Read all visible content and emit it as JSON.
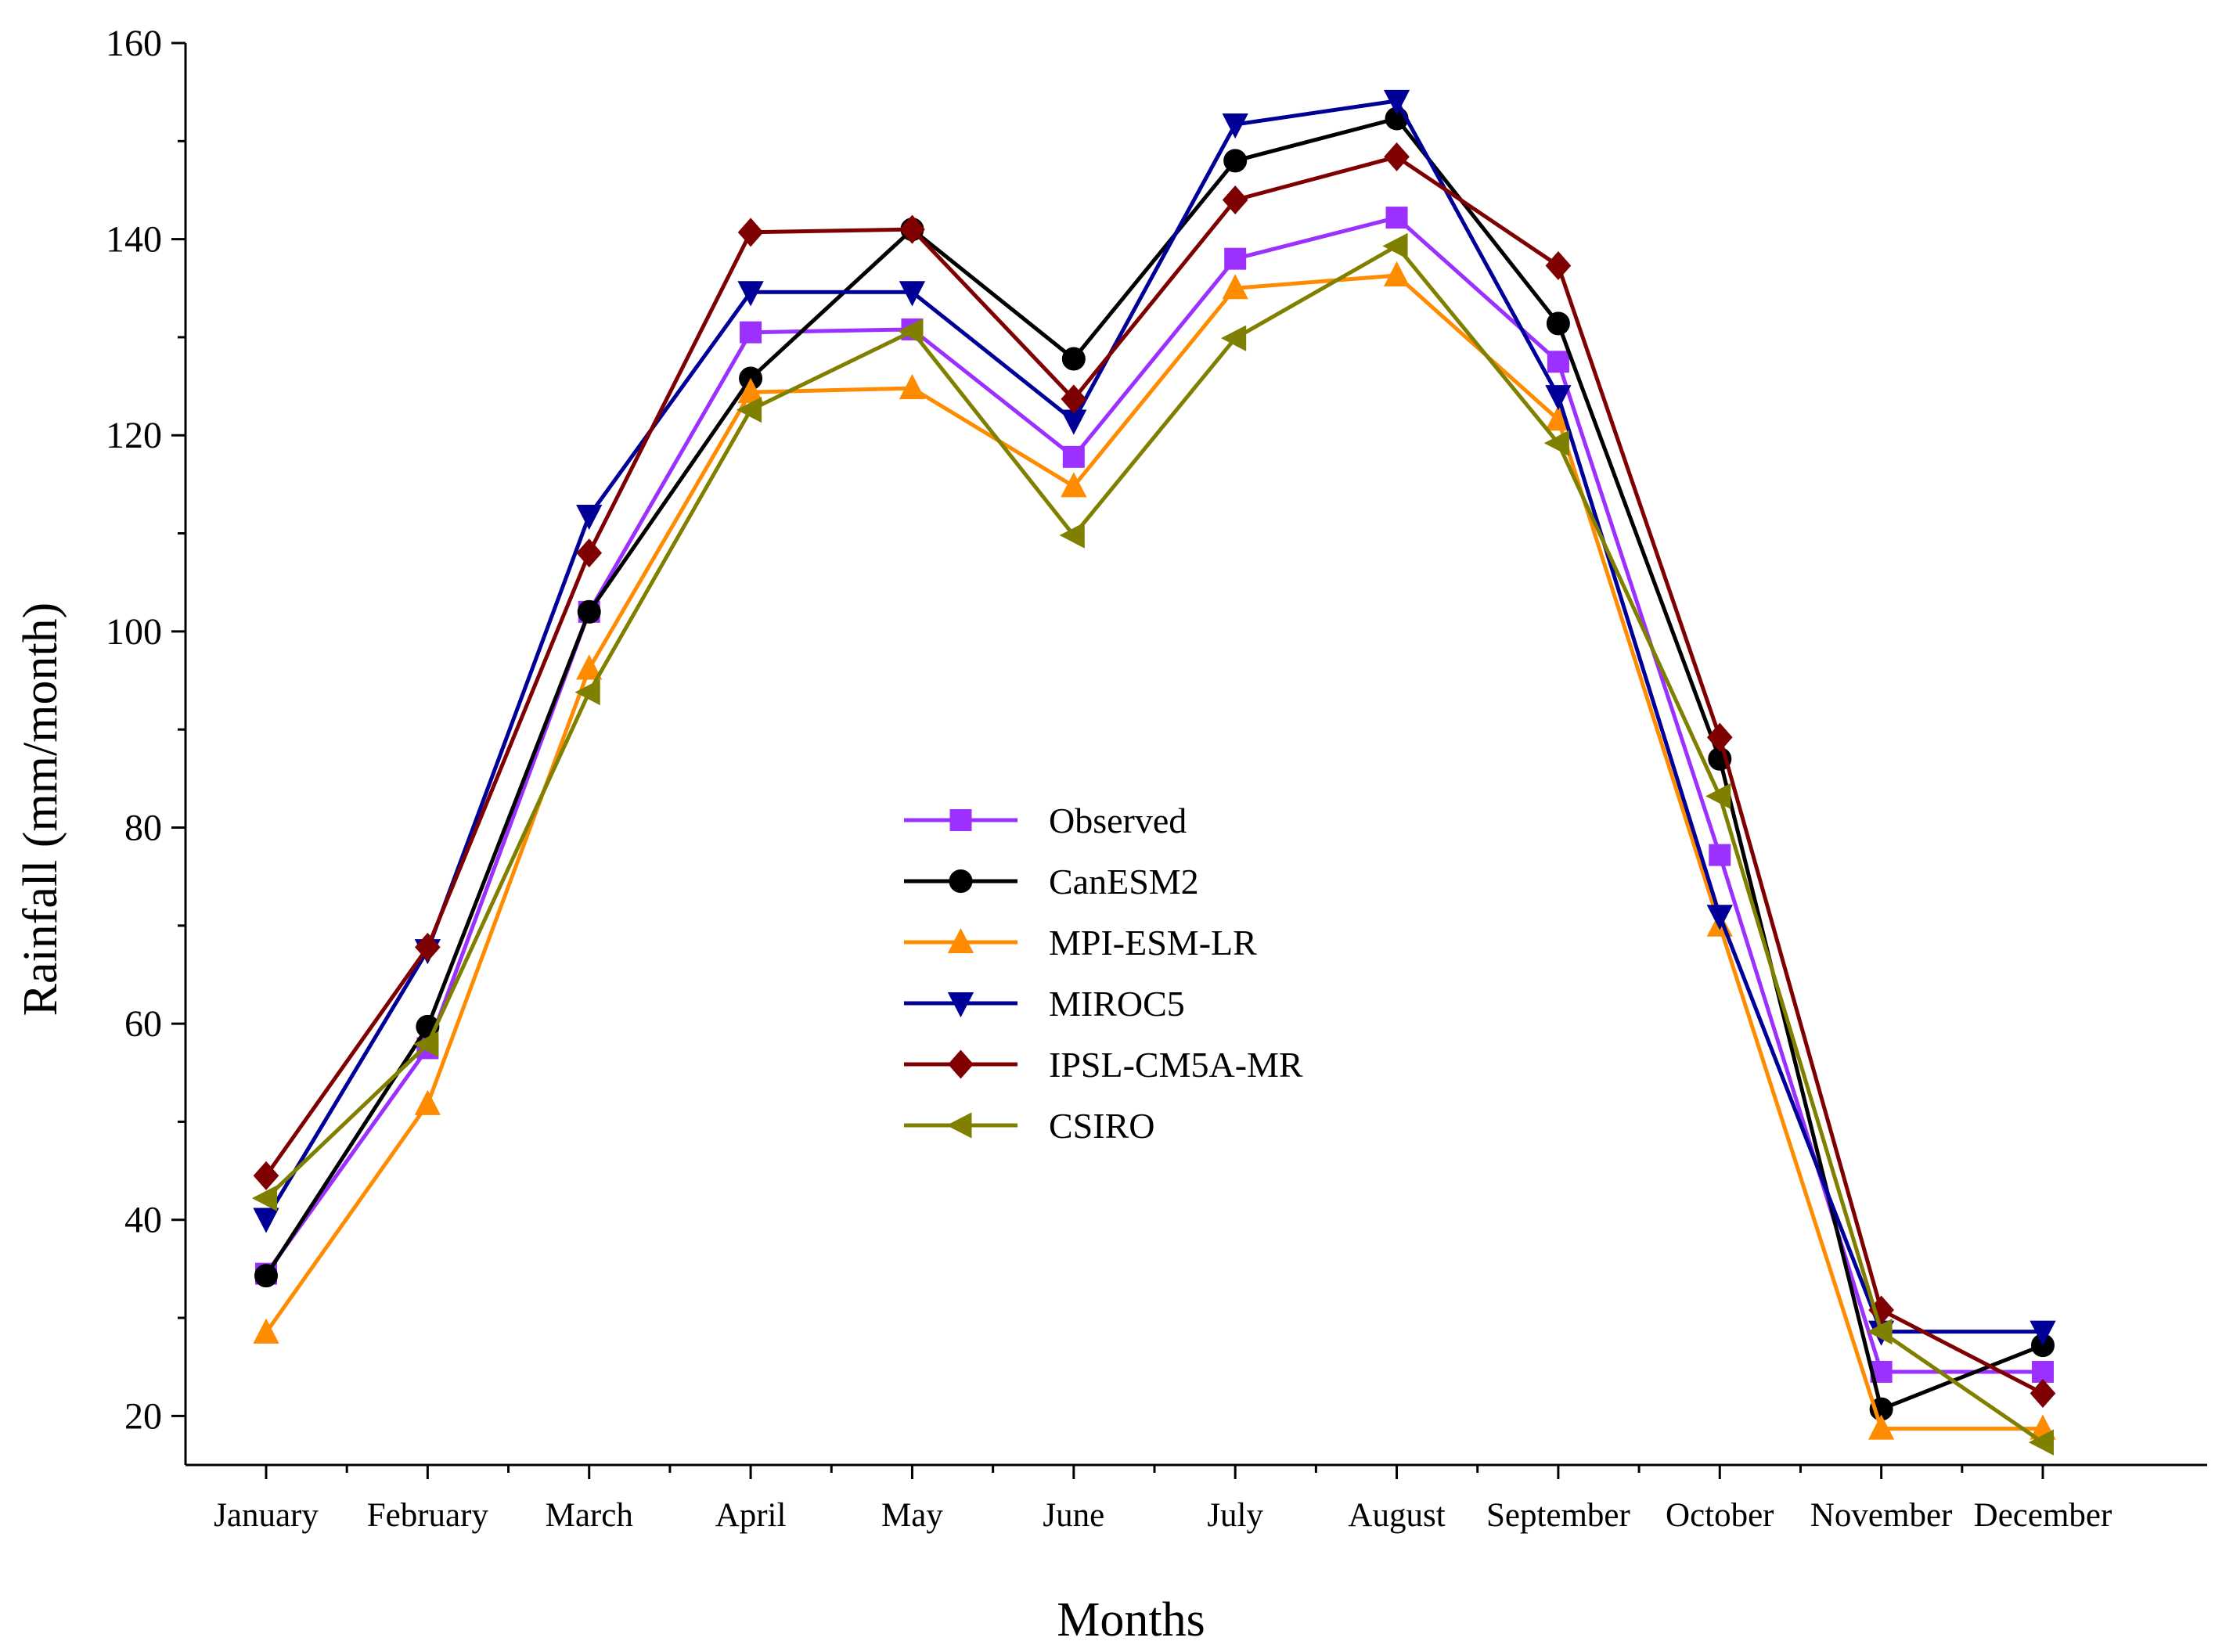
{
  "chart_data": {
    "type": "line",
    "title": "",
    "xlabel": "Months",
    "ylabel": "Rainfall (mm/month)",
    "ylim": [
      15,
      160
    ],
    "yticks": [
      20,
      40,
      60,
      80,
      100,
      120,
      140,
      160
    ],
    "grid": false,
    "legend_position": "center",
    "categories": [
      "January",
      "February",
      "March",
      "April",
      "May",
      "June",
      "July",
      "August",
      "September",
      "October",
      "November",
      "December"
    ],
    "series": [
      {
        "name": "Observed",
        "color": "#9B30FF",
        "marker": "square",
        "values": [
          34.5,
          57.5,
          102,
          130.5,
          130.8,
          117.8,
          138,
          142.2,
          127.5,
          77.2,
          24.5,
          24.5
        ]
      },
      {
        "name": "CanESM2",
        "color": "#000000",
        "marker": "circle",
        "values": [
          34.3,
          59.7,
          102,
          125.8,
          141,
          127.8,
          148,
          152.3,
          131.4,
          87,
          20.7,
          27.2
        ]
      },
      {
        "name": "MPI-ESM-LR",
        "color": "#FF8C00",
        "marker": "triangle-up",
        "values": [
          28.5,
          51.8,
          96.2,
          124.4,
          124.8,
          114.8,
          135,
          136.3,
          121.6,
          70,
          18.7,
          18.7
        ]
      },
      {
        "name": "MIROC5",
        "color": "#000099",
        "marker": "triangle-down",
        "values": [
          40.1,
          67.5,
          111.8,
          134.6,
          134.6,
          121.5,
          151.7,
          154.1,
          124,
          71,
          28.6,
          28.6
        ]
      },
      {
        "name": "IPSL-CM5A-MR",
        "color": "#7F0000",
        "marker": "diamond",
        "values": [
          44.5,
          67.8,
          108,
          140.7,
          141,
          123.7,
          144,
          148.4,
          137.3,
          89.2,
          30.8,
          22.3
        ]
      },
      {
        "name": "CSIRO",
        "color": "#808000",
        "marker": "triangle-left",
        "values": [
          42.2,
          57.9,
          93.8,
          122.6,
          130.6,
          109.8,
          129.9,
          139.3,
          119.2,
          83.2,
          28.6,
          17.3
        ]
      }
    ]
  }
}
